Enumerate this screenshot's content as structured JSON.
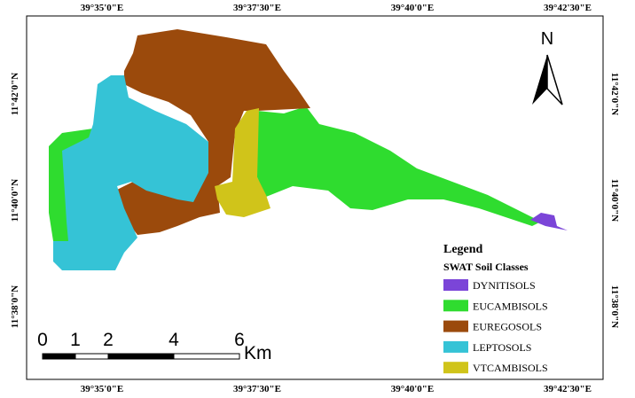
{
  "map": {
    "top_labels": [
      "39°35'0\"E",
      "39°37'30\"E",
      "39°40'0\"E",
      "39°42'30\"E"
    ],
    "bottom_labels": [
      "39°35'0\"E",
      "39°37'30\"E",
      "39°40'0\"E",
      "39°42'30\"E"
    ],
    "left_labels": [
      "11°42'0\"N",
      "11°40'0\"N",
      "11°38'0\"N"
    ],
    "right_labels": [
      "11°42'0\"N",
      "11°40'0\"N",
      "11°38'0\"N"
    ],
    "north": "N",
    "legend": {
      "title": "Legend",
      "subtitle": "SWAT Soil Classes",
      "items": [
        {
          "label": "DYNITISOLS",
          "color": "#7b45d8"
        },
        {
          "label": "EUCAMBISOLS",
          "color": "#2fdc2f"
        },
        {
          "label": "EUREGOSOLS",
          "color": "#9b4a0c"
        },
        {
          "label": "LEPTOSOLS",
          "color": "#35c3d6"
        },
        {
          "label": "VTCAMBISOLS",
          "color": "#d0c41a"
        }
      ]
    },
    "scale_bar": {
      "labels": [
        0,
        1,
        2,
        4,
        6
      ],
      "unit": "Km"
    }
  }
}
